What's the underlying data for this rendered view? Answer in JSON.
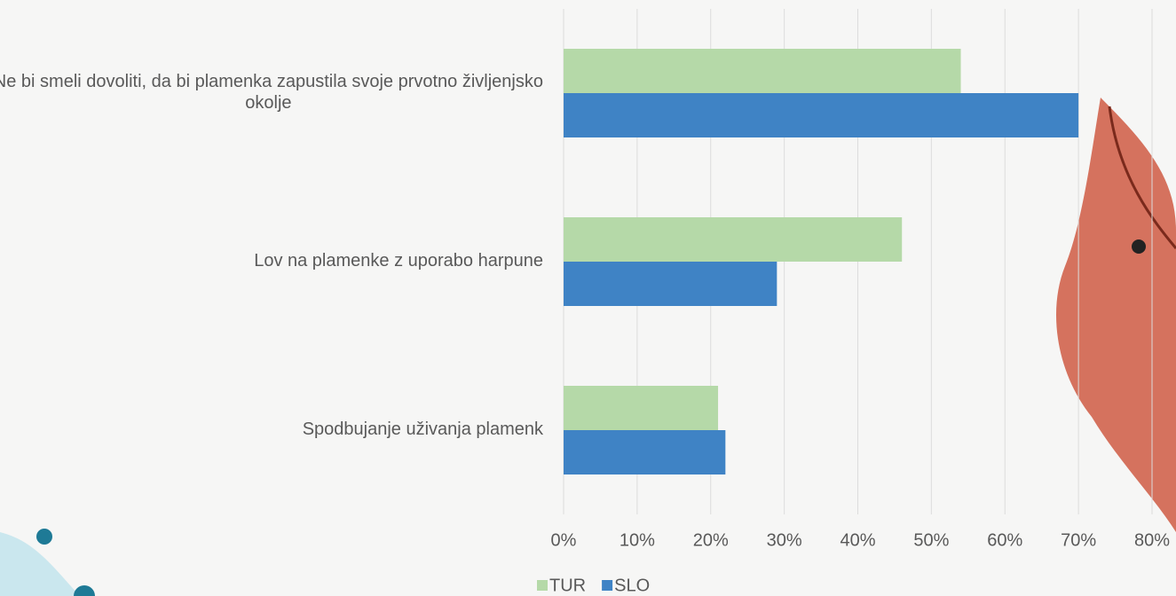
{
  "chart_data": {
    "type": "bar",
    "orientation": "horizontal",
    "categories": [
      "Ne bi smeli dovoliti, da bi plamenka zapustila svoje prvotno življenjsko okolje",
      "Lov na plamenke z uporabo harpune",
      "Spodbujanje uživanja plamenk"
    ],
    "series": [
      {
        "name": "TUR",
        "color": "#b5d9a8",
        "values": [
          54,
          46,
          21
        ]
      },
      {
        "name": "SLO",
        "color": "#3f83c5",
        "values": [
          70,
          29,
          22
        ]
      }
    ],
    "xlim": [
      0,
      80
    ],
    "xticks": [
      {
        "value": 0,
        "label": "0%"
      },
      {
        "value": 10,
        "label": "10%"
      },
      {
        "value": 20,
        "label": "20%"
      },
      {
        "value": 30,
        "label": "30%"
      },
      {
        "value": 40,
        "label": "40%"
      },
      {
        "value": 50,
        "label": "50%"
      },
      {
        "value": 60,
        "label": "60%"
      },
      {
        "value": 70,
        "label": "70%"
      },
      {
        "value": 80,
        "label": "80%"
      }
    ],
    "grid": true,
    "legend": "bottom"
  }
}
